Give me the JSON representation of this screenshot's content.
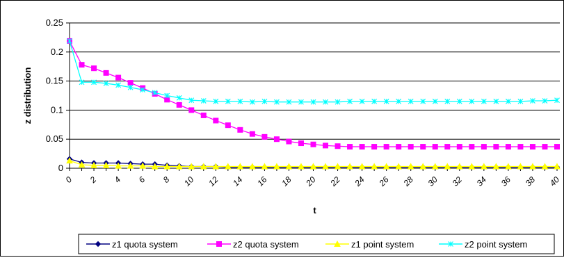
{
  "chart_data": {
    "type": "line",
    "xlabel": "t",
    "ylabel": "z distribution",
    "xlim": [
      0,
      40
    ],
    "ylim": [
      0,
      0.25
    ],
    "yticks": [
      0,
      0.05,
      0.1,
      0.15,
      0.2,
      0.25
    ],
    "ytick_labels": [
      "0",
      "0.05",
      "0.1",
      "0.15",
      "0.2",
      "0.25"
    ],
    "xticks": [
      0,
      2,
      4,
      6,
      8,
      10,
      12,
      14,
      16,
      18,
      20,
      22,
      24,
      26,
      28,
      30,
      32,
      34,
      36,
      38,
      40
    ],
    "grid": "horizontal",
    "legend_position": "bottom",
    "x": [
      0,
      1,
      2,
      3,
      4,
      5,
      6,
      7,
      8,
      9,
      10,
      11,
      12,
      13,
      14,
      15,
      16,
      17,
      18,
      19,
      20,
      21,
      22,
      23,
      24,
      25,
      26,
      27,
      28,
      29,
      30,
      31,
      32,
      33,
      34,
      35,
      36,
      37,
      38,
      39,
      40
    ],
    "series": [
      {
        "name": "z1 quota system",
        "color": "#000080",
        "marker": "diamond",
        "values": [
          0.016,
          0.01,
          0.009,
          0.009,
          0.009,
          0.008,
          0.007,
          0.007,
          0.005,
          0.004,
          0.003,
          0.003,
          0.003,
          0.002,
          0.002,
          0.002,
          0.002,
          0.002,
          0.002,
          0.002,
          0.002,
          0.002,
          0.002,
          0.002,
          0.002,
          0.002,
          0.002,
          0.002,
          0.002,
          0.002,
          0.002,
          0.002,
          0.002,
          0.002,
          0.002,
          0.002,
          0.002,
          0.002,
          0.002,
          0.002,
          0.002
        ]
      },
      {
        "name": "z2 quota system",
        "color": "#ff00ff",
        "marker": "square",
        "values": [
          0.219,
          0.178,
          0.172,
          0.164,
          0.156,
          0.147,
          0.138,
          0.128,
          0.118,
          0.109,
          0.1,
          0.091,
          0.082,
          0.074,
          0.066,
          0.059,
          0.054,
          0.05,
          0.046,
          0.043,
          0.041,
          0.039,
          0.038,
          0.037,
          0.037,
          0.037,
          0.037,
          0.037,
          0.037,
          0.037,
          0.037,
          0.037,
          0.037,
          0.037,
          0.037,
          0.037,
          0.037,
          0.037,
          0.037,
          0.037,
          0.037
        ]
      },
      {
        "name": "z1 point system",
        "color": "#ffff00",
        "marker": "triangle",
        "values": [
          0.013,
          0.006,
          0.005,
          0.005,
          0.004,
          0.004,
          0.004,
          0.003,
          0.003,
          0.003,
          0.003,
          0.003,
          0.003,
          0.003,
          0.003,
          0.003,
          0.003,
          0.003,
          0.003,
          0.003,
          0.003,
          0.003,
          0.003,
          0.003,
          0.003,
          0.003,
          0.003,
          0.003,
          0.003,
          0.003,
          0.003,
          0.003,
          0.003,
          0.003,
          0.003,
          0.003,
          0.003,
          0.003,
          0.003,
          0.003,
          0.003
        ]
      },
      {
        "name": "z2 point system",
        "color": "#00ffff",
        "marker": "star",
        "values": [
          0.219,
          0.148,
          0.148,
          0.146,
          0.143,
          0.139,
          0.135,
          0.13,
          0.125,
          0.121,
          0.117,
          0.116,
          0.115,
          0.115,
          0.115,
          0.114,
          0.115,
          0.114,
          0.114,
          0.114,
          0.114,
          0.114,
          0.114,
          0.115,
          0.115,
          0.115,
          0.115,
          0.115,
          0.115,
          0.115,
          0.115,
          0.115,
          0.115,
          0.115,
          0.115,
          0.115,
          0.115,
          0.115,
          0.116,
          0.116,
          0.117
        ]
      }
    ]
  }
}
